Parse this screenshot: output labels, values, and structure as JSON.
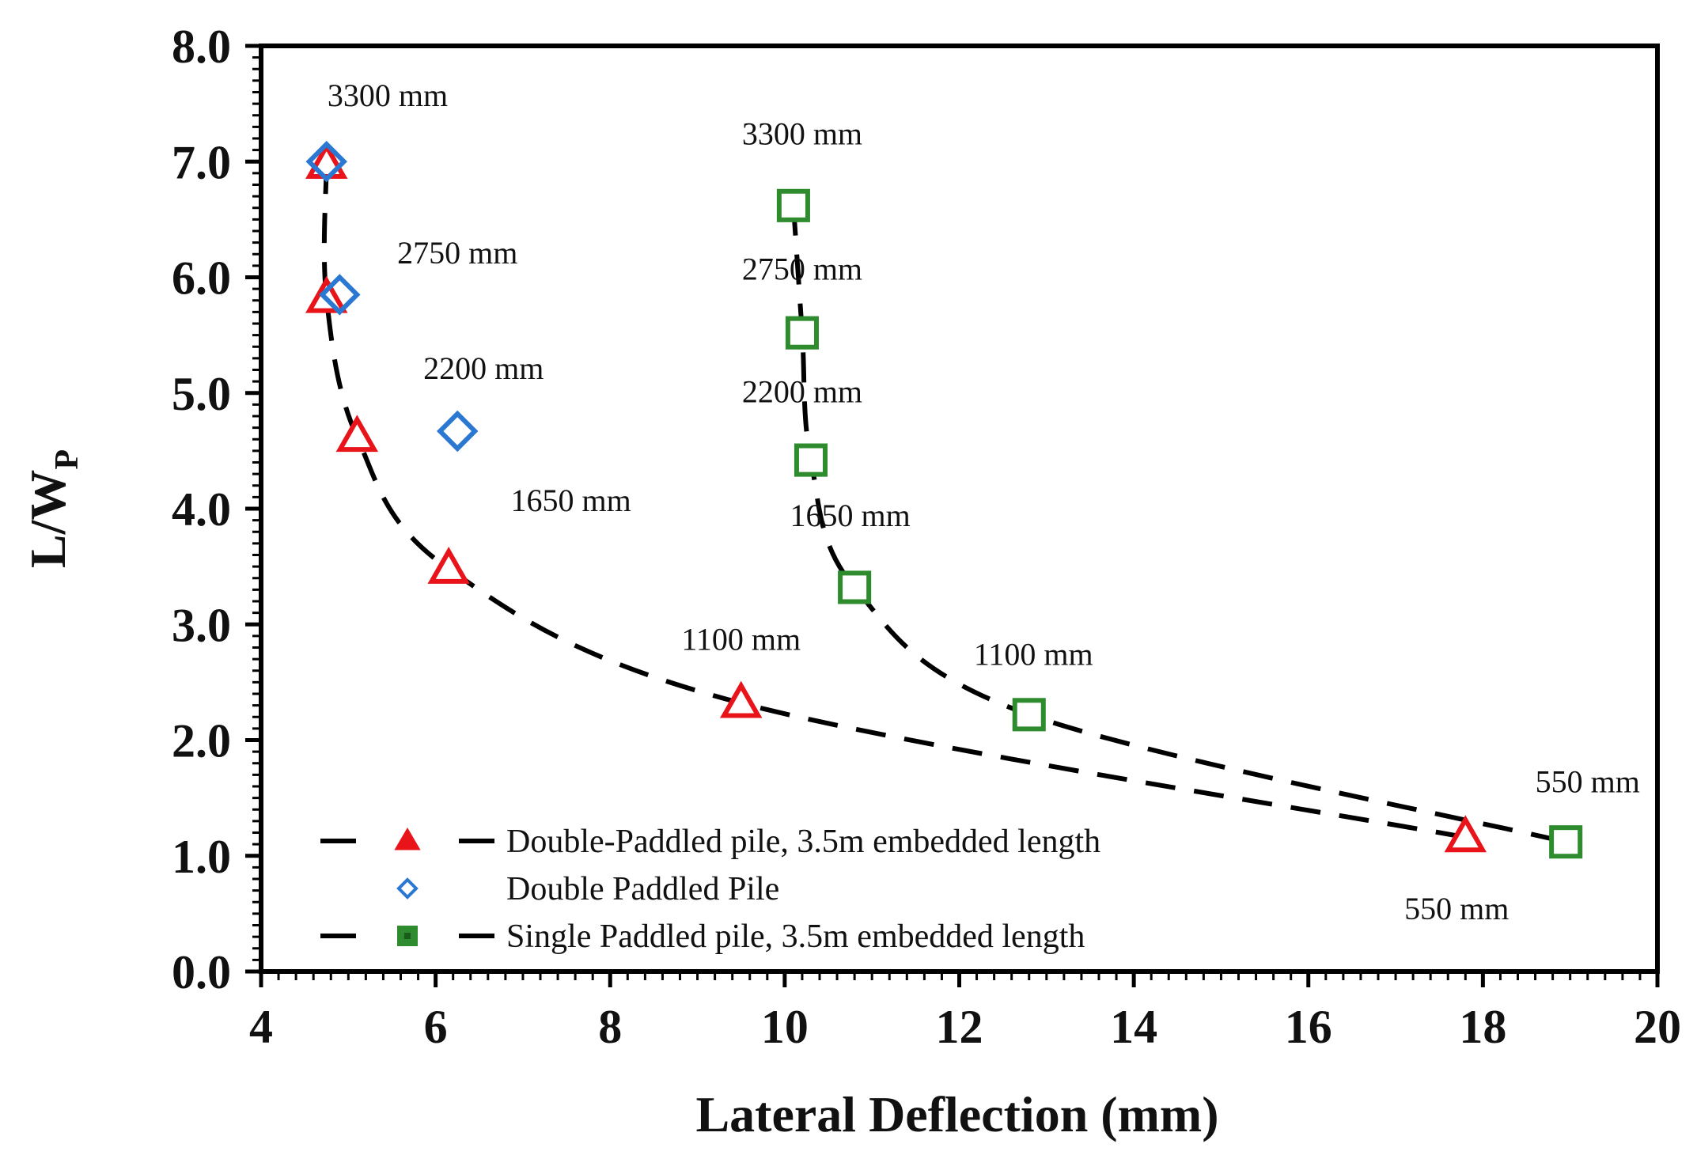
{
  "chart_data": {
    "type": "scatter",
    "title": "",
    "xlabel": "Lateral Deflection (mm)",
    "ylabel_main": "L/W",
    "ylabel_sub": "P",
    "xlim": [
      4,
      20
    ],
    "ylim": [
      0.0,
      8.0
    ],
    "x_ticks": [
      4,
      6,
      8,
      10,
      12,
      14,
      16,
      18,
      20
    ],
    "y_ticks": [
      0.0,
      1.0,
      2.0,
      3.0,
      4.0,
      5.0,
      6.0,
      7.0,
      8.0
    ],
    "y_decimals": 1,
    "grid": false,
    "legend_position": "bottom-left",
    "series": [
      {
        "name": "Double-Paddled pile, 3.5m embedded length",
        "marker": "triangle",
        "color": "#e8141a",
        "line": "dashed",
        "x": [
          4.75,
          4.75,
          5.1,
          6.15,
          9.5,
          17.8
        ],
        "y": [
          6.98,
          5.82,
          4.62,
          3.48,
          2.32,
          1.16
        ]
      },
      {
        "name": "Double Paddled Pile",
        "marker": "diamond",
        "color": "#2a78d1",
        "line": "none",
        "x": [
          4.75,
          4.9,
          6.25
        ],
        "y": [
          7.0,
          5.85,
          4.67
        ]
      },
      {
        "name": "Single Paddled pile, 3.5m embedded length",
        "marker": "square",
        "color": "#2e8b2e",
        "line": "dashed",
        "x": [
          10.1,
          10.2,
          10.3,
          10.8,
          12.8,
          18.95
        ],
        "y": [
          6.62,
          5.52,
          4.42,
          3.32,
          2.22,
          1.12
        ]
      }
    ],
    "annotations": [
      {
        "text": "3300 mm",
        "x": 5.45,
        "y": 7.48
      },
      {
        "text": "2750 mm",
        "x": 6.25,
        "y": 6.12
      },
      {
        "text": "2200 mm",
        "x": 6.55,
        "y": 5.12
      },
      {
        "text": "1650 mm",
        "x": 7.55,
        "y": 3.98
      },
      {
        "text": "1100 mm",
        "x": 9.5,
        "y": 2.78
      },
      {
        "text": "3300 mm",
        "x": 10.2,
        "y": 7.15
      },
      {
        "text": "2750 mm",
        "x": 10.2,
        "y": 5.98
      },
      {
        "text": "2200 mm",
        "x": 10.2,
        "y": 4.92
      },
      {
        "text": "1650 mm",
        "x": 10.75,
        "y": 3.85
      },
      {
        "text": "1100 mm",
        "x": 12.85,
        "y": 2.65
      },
      {
        "text": "550 mm",
        "x": 19.2,
        "y": 1.55
      },
      {
        "text": "550 mm",
        "x": 17.7,
        "y": 0.45
      }
    ]
  }
}
